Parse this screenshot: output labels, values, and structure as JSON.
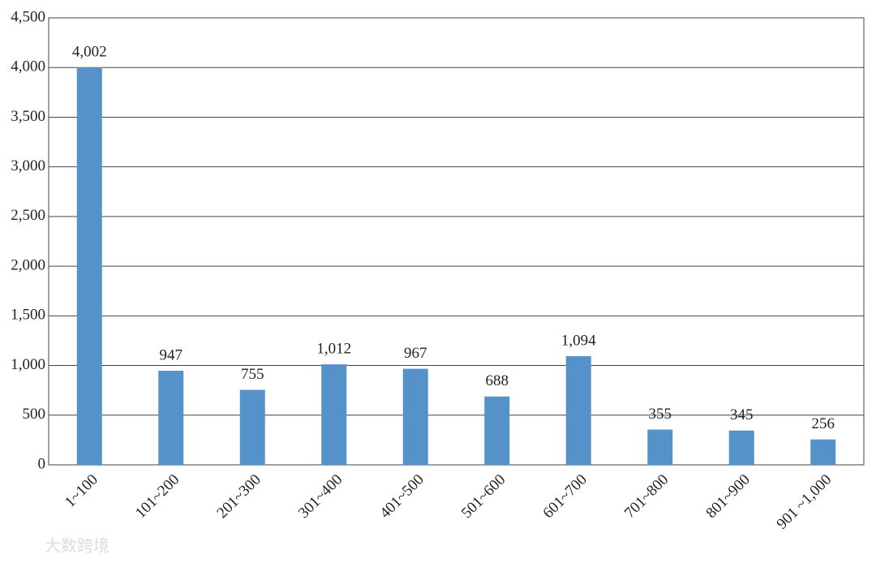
{
  "chart_data": {
    "type": "bar",
    "categories": [
      "1~100",
      "101~200",
      "201~300",
      "301~400",
      "401~500",
      "501~600",
      "601~700",
      "701~800",
      "801~900",
      "901 ~1,000"
    ],
    "values": [
      4002,
      947,
      755,
      1012,
      967,
      688,
      1094,
      355,
      345,
      256
    ],
    "value_labels": [
      "4,002",
      "947",
      "755",
      "1,012",
      "967",
      "688",
      "1,094",
      "355",
      "345",
      "256"
    ],
    "color": "#5592c9",
    "ylim": [
      0,
      4500
    ],
    "yticks": [
      0,
      500,
      {
        "value": 1000,
        "label": "1,000"
      },
      {
        "value": 1500,
        "label": "1,500"
      },
      {
        "value": 2000,
        "label": "2,000"
      },
      {
        "value": 2500,
        "label": "2,500"
      },
      {
        "value": 3000,
        "label": "3,000"
      },
      {
        "value": 3500,
        "label": "3,500"
      },
      {
        "value": 4000,
        "label": "4,000"
      },
      {
        "value": 4500,
        "label": "4,500"
      }
    ],
    "grid": true
  },
  "watermark": "大数跨境"
}
